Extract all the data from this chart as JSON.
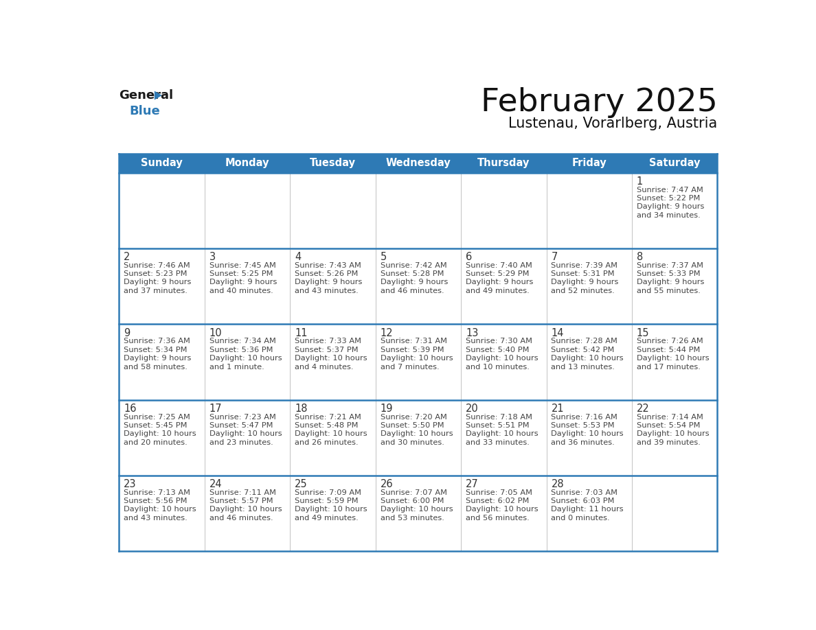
{
  "title": "February 2025",
  "subtitle": "Lustenau, Vorarlberg, Austria",
  "header_color": "#2e7ab5",
  "header_text_color": "#ffffff",
  "cell_bg_color": "#ffffff",
  "days_of_week": [
    "Sunday",
    "Monday",
    "Tuesday",
    "Wednesday",
    "Thursday",
    "Friday",
    "Saturday"
  ],
  "grid_line_color": "#2e7ab5",
  "text_color": "#444444",
  "day_number_color": "#333333",
  "logo_general_color": "#1a1a1a",
  "logo_blue_color": "#2e7ab5",
  "logo_triangle_color": "#2e7ab5",
  "calendar": [
    [
      {
        "day": null,
        "sunrise": null,
        "sunset": null,
        "daylight": null
      },
      {
        "day": null,
        "sunrise": null,
        "sunset": null,
        "daylight": null
      },
      {
        "day": null,
        "sunrise": null,
        "sunset": null,
        "daylight": null
      },
      {
        "day": null,
        "sunrise": null,
        "sunset": null,
        "daylight": null
      },
      {
        "day": null,
        "sunrise": null,
        "sunset": null,
        "daylight": null
      },
      {
        "day": null,
        "sunrise": null,
        "sunset": null,
        "daylight": null
      },
      {
        "day": 1,
        "sunrise": "7:47 AM",
        "sunset": "5:22 PM",
        "daylight": "9 hours\nand 34 minutes."
      }
    ],
    [
      {
        "day": 2,
        "sunrise": "7:46 AM",
        "sunset": "5:23 PM",
        "daylight": "9 hours\nand 37 minutes."
      },
      {
        "day": 3,
        "sunrise": "7:45 AM",
        "sunset": "5:25 PM",
        "daylight": "9 hours\nand 40 minutes."
      },
      {
        "day": 4,
        "sunrise": "7:43 AM",
        "sunset": "5:26 PM",
        "daylight": "9 hours\nand 43 minutes."
      },
      {
        "day": 5,
        "sunrise": "7:42 AM",
        "sunset": "5:28 PM",
        "daylight": "9 hours\nand 46 minutes."
      },
      {
        "day": 6,
        "sunrise": "7:40 AM",
        "sunset": "5:29 PM",
        "daylight": "9 hours\nand 49 minutes."
      },
      {
        "day": 7,
        "sunrise": "7:39 AM",
        "sunset": "5:31 PM",
        "daylight": "9 hours\nand 52 minutes."
      },
      {
        "day": 8,
        "sunrise": "7:37 AM",
        "sunset": "5:33 PM",
        "daylight": "9 hours\nand 55 minutes."
      }
    ],
    [
      {
        "day": 9,
        "sunrise": "7:36 AM",
        "sunset": "5:34 PM",
        "daylight": "9 hours\nand 58 minutes."
      },
      {
        "day": 10,
        "sunrise": "7:34 AM",
        "sunset": "5:36 PM",
        "daylight": "10 hours\nand 1 minute."
      },
      {
        "day": 11,
        "sunrise": "7:33 AM",
        "sunset": "5:37 PM",
        "daylight": "10 hours\nand 4 minutes."
      },
      {
        "day": 12,
        "sunrise": "7:31 AM",
        "sunset": "5:39 PM",
        "daylight": "10 hours\nand 7 minutes."
      },
      {
        "day": 13,
        "sunrise": "7:30 AM",
        "sunset": "5:40 PM",
        "daylight": "10 hours\nand 10 minutes."
      },
      {
        "day": 14,
        "sunrise": "7:28 AM",
        "sunset": "5:42 PM",
        "daylight": "10 hours\nand 13 minutes."
      },
      {
        "day": 15,
        "sunrise": "7:26 AM",
        "sunset": "5:44 PM",
        "daylight": "10 hours\nand 17 minutes."
      }
    ],
    [
      {
        "day": 16,
        "sunrise": "7:25 AM",
        "sunset": "5:45 PM",
        "daylight": "10 hours\nand 20 minutes."
      },
      {
        "day": 17,
        "sunrise": "7:23 AM",
        "sunset": "5:47 PM",
        "daylight": "10 hours\nand 23 minutes."
      },
      {
        "day": 18,
        "sunrise": "7:21 AM",
        "sunset": "5:48 PM",
        "daylight": "10 hours\nand 26 minutes."
      },
      {
        "day": 19,
        "sunrise": "7:20 AM",
        "sunset": "5:50 PM",
        "daylight": "10 hours\nand 30 minutes."
      },
      {
        "day": 20,
        "sunrise": "7:18 AM",
        "sunset": "5:51 PM",
        "daylight": "10 hours\nand 33 minutes."
      },
      {
        "day": 21,
        "sunrise": "7:16 AM",
        "sunset": "5:53 PM",
        "daylight": "10 hours\nand 36 minutes."
      },
      {
        "day": 22,
        "sunrise": "7:14 AM",
        "sunset": "5:54 PM",
        "daylight": "10 hours\nand 39 minutes."
      }
    ],
    [
      {
        "day": 23,
        "sunrise": "7:13 AM",
        "sunset": "5:56 PM",
        "daylight": "10 hours\nand 43 minutes."
      },
      {
        "day": 24,
        "sunrise": "7:11 AM",
        "sunset": "5:57 PM",
        "daylight": "10 hours\nand 46 minutes."
      },
      {
        "day": 25,
        "sunrise": "7:09 AM",
        "sunset": "5:59 PM",
        "daylight": "10 hours\nand 49 minutes."
      },
      {
        "day": 26,
        "sunrise": "7:07 AM",
        "sunset": "6:00 PM",
        "daylight": "10 hours\nand 53 minutes."
      },
      {
        "day": 27,
        "sunrise": "7:05 AM",
        "sunset": "6:02 PM",
        "daylight": "10 hours\nand 56 minutes."
      },
      {
        "day": 28,
        "sunrise": "7:03 AM",
        "sunset": "6:03 PM",
        "daylight": "11 hours\nand 0 minutes."
      },
      {
        "day": null,
        "sunrise": null,
        "sunset": null,
        "daylight": null
      }
    ]
  ]
}
